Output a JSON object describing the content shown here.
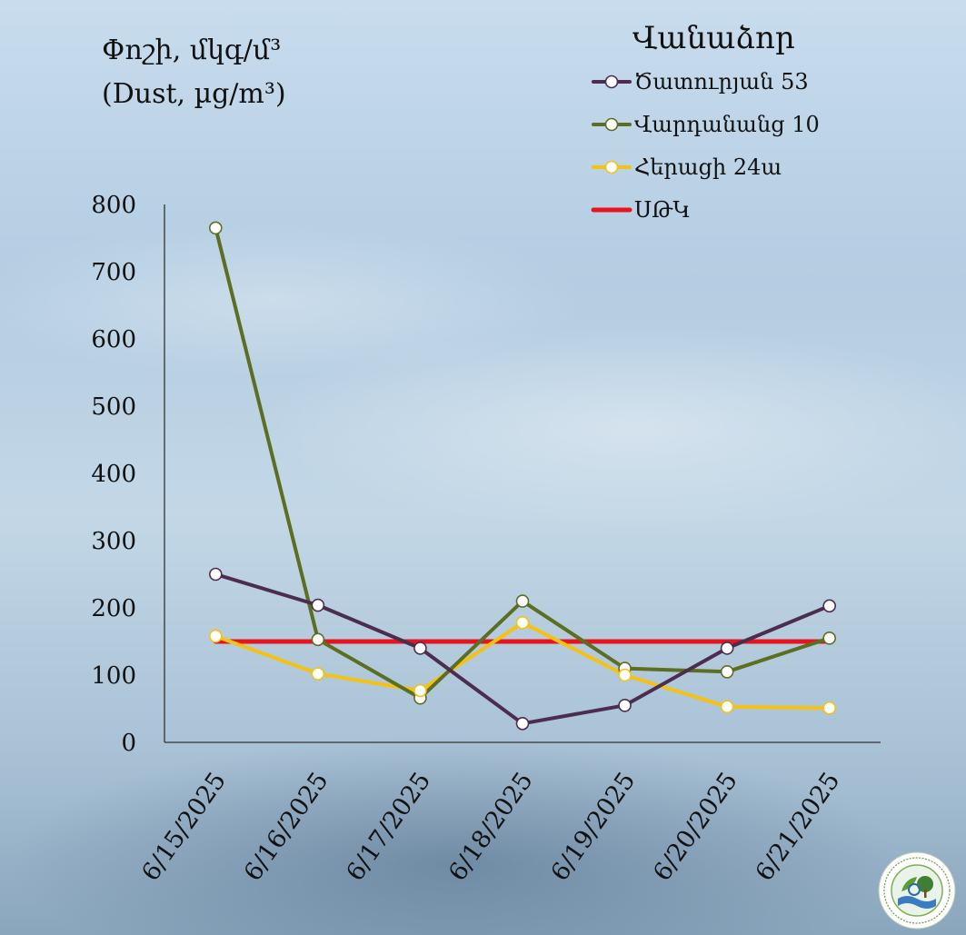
{
  "chart_data": {
    "type": "line",
    "ylabel": [
      "Փոշի, մկգ/մ³",
      "(Dust, µg/m³)"
    ],
    "categories": [
      "6/15/2025",
      "6/16/2025",
      "6/17/2025",
      "6/18/2025",
      "6/19/2025",
      "6/20/2025",
      "6/21/2025"
    ],
    "ylim": [
      0,
      800
    ],
    "yticks": [
      0,
      100,
      200,
      300,
      400,
      500,
      600,
      700,
      800
    ],
    "legend_title": "Վանաձոր",
    "legend_position": "top-right",
    "grid": false,
    "series": [
      {
        "name": "Ծատուրյան 53",
        "color": "#4a2d4f",
        "marker": true,
        "values": [
          250,
          204,
          140,
          28,
          55,
          140,
          203
        ]
      },
      {
        "name": "Վարդանանց 10",
        "color": "#5b6e22",
        "marker": true,
        "values": [
          765,
          153,
          66,
          210,
          110,
          105,
          155
        ]
      },
      {
        "name": "Հերացի 24ա",
        "color": "#f5c211",
        "marker": true,
        "values": [
          158,
          102,
          77,
          178,
          100,
          53,
          51
        ]
      },
      {
        "name": "ՍԹԿ",
        "color": "#e8141c",
        "marker": false,
        "values": [
          150,
          150,
          150,
          150,
          150,
          150,
          150
        ]
      }
    ]
  }
}
